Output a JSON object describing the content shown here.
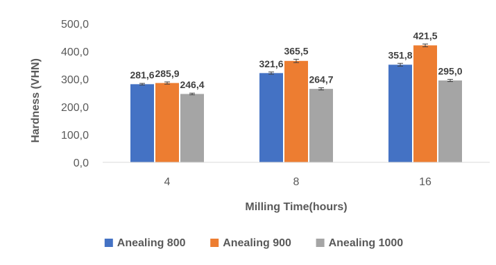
{
  "chart_data": {
    "type": "bar",
    "title": "",
    "xlabel": "Milling Time(hours)",
    "ylabel": "Hardness (VHN)",
    "categories": [
      "4",
      "8",
      "16"
    ],
    "ylim": [
      0,
      500
    ],
    "yticks": [
      0,
      100,
      200,
      300,
      400,
      500
    ],
    "ytick_labels": [
      "0,0",
      "100,0",
      "200,0",
      "300,0",
      "400,0",
      "500,0"
    ],
    "grid": false,
    "legend_position": "bottom",
    "error_bars": true,
    "series": [
      {
        "name": "Anealing 800",
        "color": "#4472C4",
        "values": [
          281.6,
          321.6,
          351.8
        ],
        "labels": [
          "281,6",
          "321,6",
          "351,8"
        ],
        "errors": [
          3,
          4,
          5
        ]
      },
      {
        "name": "Anealing 900",
        "color": "#ED7D31",
        "values": [
          285.9,
          365.5,
          421.5
        ],
        "labels": [
          "285,9",
          "365,5",
          "421,5"
        ],
        "errors": [
          4,
          6,
          5
        ]
      },
      {
        "name": "Anealing 1000",
        "color": "#A5A5A5",
        "values": [
          246.4,
          264.7,
          295.0
        ],
        "labels": [
          "246,4",
          "264,7",
          "295,0"
        ],
        "errors": [
          3,
          4,
          4
        ]
      }
    ]
  }
}
